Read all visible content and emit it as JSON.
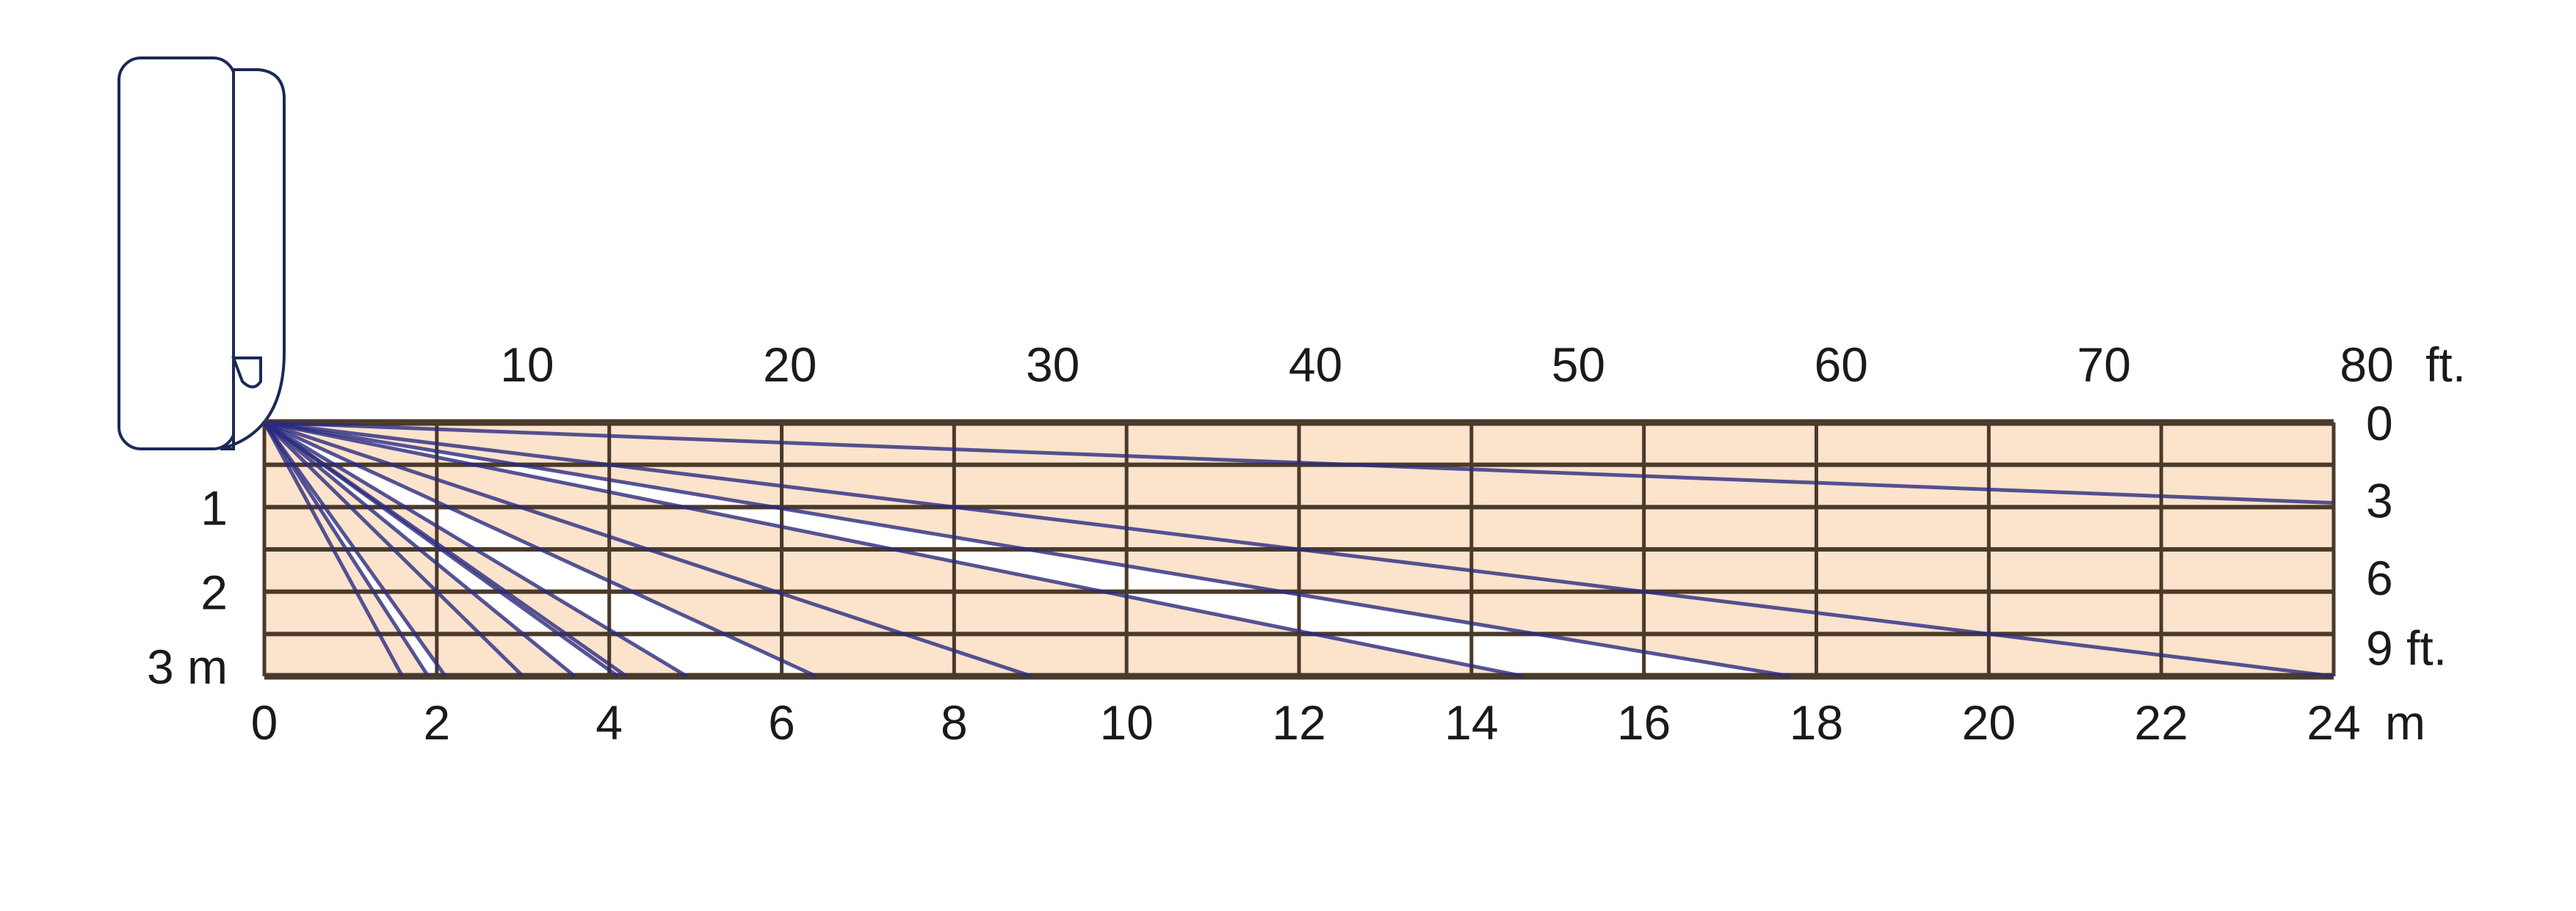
{
  "colors": {
    "zone_fill": "#fbe3cc",
    "gap_fill": "#ffffff",
    "grid": "#4a3a2a",
    "ray": "#2b2b80",
    "device": "#1b2a55"
  },
  "device": {
    "icon": "wall-mounted-sensor-icon"
  },
  "axes": {
    "bottom_m": {
      "ticks": [
        "0",
        "2",
        "4",
        "6",
        "8",
        "10",
        "12",
        "14",
        "16",
        "18",
        "20",
        "22",
        "24"
      ],
      "unit": "m"
    },
    "top_ft": {
      "ticks": [
        "10",
        "20",
        "30",
        "40",
        "50",
        "60",
        "70",
        "80"
      ],
      "unit": "ft."
    },
    "left_m": {
      "ticks": [
        "1",
        "2"
      ],
      "last": "3 m"
    },
    "right_ft": {
      "ticks": [
        "0",
        "3",
        "6"
      ],
      "last": "9 ft."
    }
  },
  "diagram_data": {
    "range_m": [
      0,
      24
    ],
    "height_m": [
      0,
      3
    ],
    "rays_to_floor_m": [
      1.6,
      1.9,
      2.1,
      3.0,
      3.6,
      4.1,
      4.2,
      4.9,
      6.4,
      8.9,
      14.6,
      17.7,
      24
    ],
    "rays_to_far_edge_depth_m": [
      0.95
    ],
    "gap_zones_between_rays_m": [
      [
        1.9,
        2.1
      ],
      [
        3.6,
        4.1
      ],
      [
        4.9,
        6.4
      ],
      [
        14.6,
        17.7
      ]
    ]
  }
}
